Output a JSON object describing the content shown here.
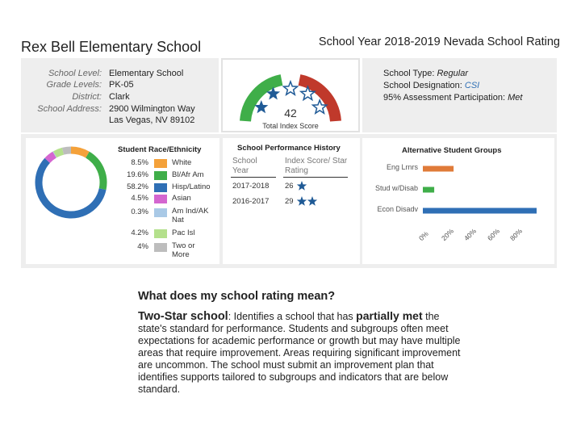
{
  "header": {
    "school_name": "Rex Bell Elementary School",
    "rating_title": "School Year 2018-2019 Nevada School Rating"
  },
  "info": {
    "school_level_label": "School Level:",
    "school_level": "Elementary School",
    "grade_levels_label": "Grade Levels:",
    "grade_levels": "PK-05",
    "district_label": "District:",
    "district": "Clark",
    "address_label": "School Address:",
    "address_line1": "2900 Wilmington Way",
    "address_line2": "Las Vegas, NV 89102"
  },
  "gauge": {
    "score": "42",
    "label": "Total Index Score",
    "stars_filled": 2,
    "stars_total": 5
  },
  "school_type": {
    "type_label": "School Type:",
    "type": "Regular",
    "designation_label": "School Designation:",
    "designation": "CSI",
    "participation_label": "95% Assessment Participation:",
    "participation": "Met"
  },
  "race": {
    "title": "Student Race/Ethnicity",
    "items": [
      {
        "pct": "8.5%",
        "name": "White",
        "color": "#f4a13a",
        "value": 8.5
      },
      {
        "pct": "19.6%",
        "name": "Bl/Afr Am",
        "color": "#3fae49",
        "value": 19.6
      },
      {
        "pct": "58.2%",
        "name": "Hisp/Latino",
        "color": "#2f6fb5",
        "value": 58.2
      },
      {
        "pct": "4.5%",
        "name": "Asian",
        "color": "#d466d0",
        "value": 4.5
      },
      {
        "pct": "0.3%",
        "name": "Am Ind/AK Nat",
        "color": "#a9c9e6",
        "value": 0.3
      },
      {
        "pct": "4.2%",
        "name": "Pac Isl",
        "color": "#b4e08c",
        "value": 4.2
      },
      {
        "pct": "4%",
        "name": "Two or More",
        "color": "#bdbdbd",
        "value": 4.0
      }
    ]
  },
  "history": {
    "title": "School Performance History",
    "col1_header": "School Year",
    "col2_header": "Index Score/ Star Rating",
    "rows": [
      {
        "year": "2017-2018",
        "score": "26",
        "stars": 1
      },
      {
        "year": "2016-2017",
        "score": "29",
        "stars": 2
      }
    ]
  },
  "chart_data": {
    "type": "bar",
    "orientation": "horizontal",
    "title": "Alternative Student Groups",
    "categories": [
      "Eng Lrnrs",
      "Stud w/Disab",
      "Econ Disadv"
    ],
    "values": [
      27,
      10,
      100
    ],
    "colors": [
      "#e07b39",
      "#3fae49",
      "#2f6fb5"
    ],
    "xlim": [
      0,
      100
    ],
    "tick_labels": [
      "0%",
      "20%",
      "40%",
      "60%",
      "80%"
    ]
  },
  "meaning": {
    "title": "What does my school rating mean?",
    "heading": "Two-Star school",
    "intro": ": Identifies a school that has ",
    "emphasis": "partially met",
    "body": " the state's standard for performance. Students and subgroups often meet expectations for academic performance or growth but may have multiple areas that require improvement. Areas requiring significant improvement are uncommon. The school must submit an improvement plan that identifies supports tailored to subgroups and indicators that are below standard."
  },
  "colors": {
    "gauge_green": "#3fae49",
    "gauge_red": "#c0392b",
    "star_blue": "#1f5a96"
  }
}
